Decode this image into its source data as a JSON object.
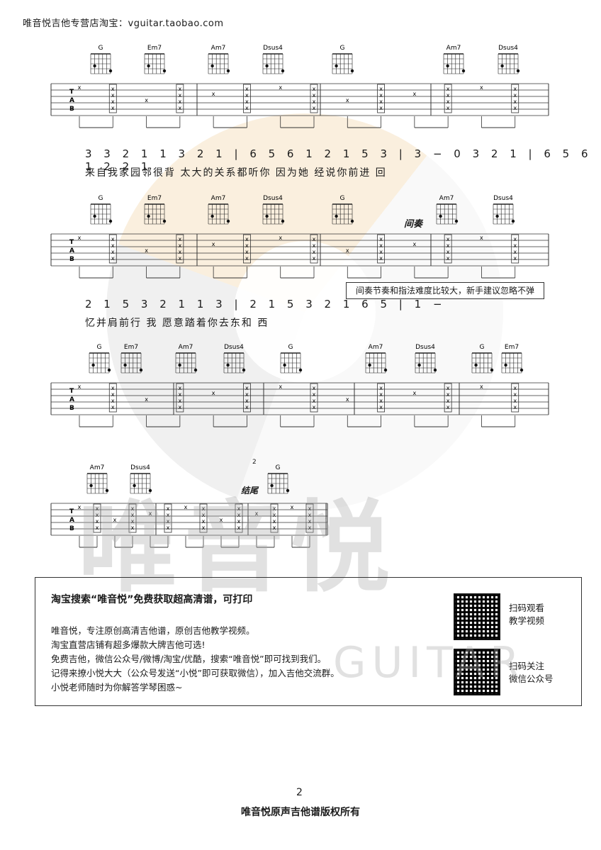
{
  "header": "唯音悦吉他专营店淘宝：vguitar.taobao.com",
  "chords_row1": [
    "G",
    "Em7",
    "Am7",
    "Dsus4",
    "G",
    "Am7",
    "Dsus4"
  ],
  "chords_row2": [
    "G",
    "Em7",
    "Am7",
    "Dsus4",
    "G",
    "Am7",
    "Dsus4"
  ],
  "chords_row3": [
    "G",
    "Em7",
    "Am7",
    "Dsus4",
    "G",
    "Am7",
    "Dsus4",
    "G",
    "Em7"
  ],
  "chords_row4": [
    "Am7",
    "Dsus4",
    "G"
  ],
  "section_labels": {
    "interlude": "间奏",
    "ending": "结尾",
    "ending_bracket": "2"
  },
  "notes_row1": "3 3 2 1 1 3 2 1 | 6 5 6 1 2 1 5 3 | 3 − 0 3 2 1 | 6 5 6 1 2  2 1",
  "lyrics_row1": "来自我家园邻很背   太大的关系都听你      因为她  经说你前进     回",
  "notes_row2": "2 1 5 3 2 1 1 3 | 2 1 5 3 2 1 6 5 | 1 −",
  "lyrics_row2": "忆并肩前行     我  愿意踏着你去东和  西",
  "note_box": "间奏节奏和指法难度比较大，新手建议忽略不弹",
  "promo": {
    "title": "淘宝搜索“唯音悦”免费获取超高清谱，可打印",
    "lines": [
      "唯音悦，专注原创高清吉他谱，原创吉他教学视频。",
      "淘宝直营店铺有超多爆款大牌吉他可选!",
      "免费吉他，微信公众号/微博/淘宝/优酷，搜索“唯音悦”即可找到我们。",
      "记得来撩小悦大大（公众号发送“小悦”即可获取微信），加入吉他交流群。",
      "小悦老师随时为你解答学琴困惑~"
    ],
    "qr1_label": [
      "扫码观看",
      "教学视频"
    ],
    "qr2_label": [
      "扫码关注",
      "微信公众号"
    ]
  },
  "watermark": {
    "text": "唯音悦",
    "sub": "GUITAR"
  },
  "page_number": "2",
  "footer": "唯音悦原声吉他谱版权所有"
}
